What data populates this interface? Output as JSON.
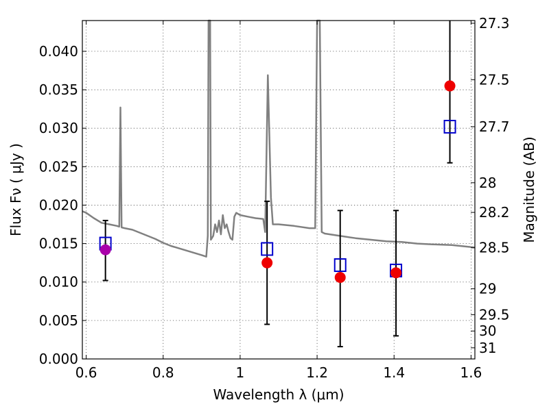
{
  "chart_data": {
    "type": "scatter",
    "xlabel": "Wavelength  λ (μm)",
    "ylabel": "Flux  Fν  ( μJy )",
    "ylabel_right": "Magnitude (AB)",
    "xlim": [
      0.59,
      1.61
    ],
    "ylim": [
      0.0,
      0.044
    ],
    "grid": true,
    "x_ticks": [
      {
        "value": 0.6,
        "label": "0.6"
      },
      {
        "value": 0.8,
        "label": "0.8"
      },
      {
        "value": 1.0,
        "label": "1"
      },
      {
        "value": 1.2,
        "label": "1.2"
      },
      {
        "value": 1.4,
        "label": "1.4"
      },
      {
        "value": 1.6,
        "label": "1.6"
      }
    ],
    "y_ticks": [
      {
        "value": 0.0,
        "label": "0.000"
      },
      {
        "value": 0.005,
        "label": "0.005"
      },
      {
        "value": 0.01,
        "label": "0.010"
      },
      {
        "value": 0.015,
        "label": "0.015"
      },
      {
        "value": 0.02,
        "label": "0.020"
      },
      {
        "value": 0.025,
        "label": "0.025"
      },
      {
        "value": 0.03,
        "label": "0.030"
      },
      {
        "value": 0.035,
        "label": "0.035"
      },
      {
        "value": 0.04,
        "label": "0.040"
      }
    ],
    "mag_ticks": [
      {
        "mag": 27.3,
        "label": "27.3"
      },
      {
        "mag": 27.5,
        "label": "27.5"
      },
      {
        "mag": 27.7,
        "label": "27.7"
      },
      {
        "mag": 28,
        "label": "28"
      },
      {
        "mag": 28.2,
        "label": "28.2"
      },
      {
        "mag": 28.5,
        "label": "28.5"
      },
      {
        "mag": 29,
        "label": "29"
      },
      {
        "mag": 29.5,
        "label": "29.5"
      },
      {
        "mag": 30,
        "label": "30"
      },
      {
        "mag": 31,
        "label": "31"
      }
    ],
    "series": [
      {
        "kind": "spectrum",
        "color": "#808080",
        "points": [
          [
            0.59,
            0.0192
          ],
          [
            0.6,
            0.019
          ],
          [
            0.62,
            0.0183
          ],
          [
            0.64,
            0.0177
          ],
          [
            0.66,
            0.0175
          ],
          [
            0.68,
            0.0173
          ],
          [
            0.686,
            0.0172
          ],
          [
            0.689,
            0.0327
          ],
          [
            0.692,
            0.0171
          ],
          [
            0.7,
            0.017
          ],
          [
            0.72,
            0.0168
          ],
          [
            0.74,
            0.0164
          ],
          [
            0.76,
            0.016
          ],
          [
            0.78,
            0.0156
          ],
          [
            0.8,
            0.0151
          ],
          [
            0.82,
            0.0147
          ],
          [
            0.84,
            0.0144
          ],
          [
            0.86,
            0.0141
          ],
          [
            0.88,
            0.0138
          ],
          [
            0.9,
            0.0135
          ],
          [
            0.912,
            0.0133
          ],
          [
            0.916,
            0.016
          ],
          [
            0.918,
            0.044
          ],
          [
            0.922,
            0.044
          ],
          [
            0.924,
            0.0155
          ],
          [
            0.93,
            0.016
          ],
          [
            0.935,
            0.0175
          ],
          [
            0.94,
            0.0165
          ],
          [
            0.945,
            0.018
          ],
          [
            0.95,
            0.0162
          ],
          [
            0.955,
            0.0187
          ],
          [
            0.96,
            0.017
          ],
          [
            0.965,
            0.0175
          ],
          [
            0.97,
            0.0165
          ],
          [
            0.975,
            0.0157
          ],
          [
            0.98,
            0.0155
          ],
          [
            0.985,
            0.0185
          ],
          [
            0.99,
            0.019
          ],
          [
            1.0,
            0.0187
          ],
          [
            1.02,
            0.0185
          ],
          [
            1.04,
            0.0183
          ],
          [
            1.06,
            0.0182
          ],
          [
            1.065,
            0.0165
          ],
          [
            1.072,
            0.0369
          ],
          [
            1.08,
            0.021
          ],
          [
            1.085,
            0.0175
          ],
          [
            1.1,
            0.0175
          ],
          [
            1.14,
            0.0173
          ],
          [
            1.18,
            0.017
          ],
          [
            1.195,
            0.017
          ],
          [
            1.2,
            0.044
          ],
          [
            1.207,
            0.044
          ],
          [
            1.212,
            0.0165
          ],
          [
            1.22,
            0.0163
          ],
          [
            1.26,
            0.016
          ],
          [
            1.3,
            0.0157
          ],
          [
            1.34,
            0.0155
          ],
          [
            1.38,
            0.0153
          ],
          [
            1.42,
            0.0152
          ],
          [
            1.46,
            0.015
          ],
          [
            1.5,
            0.0149
          ],
          [
            1.55,
            0.0148
          ],
          [
            1.61,
            0.0145
          ]
        ]
      },
      {
        "kind": "model-squares",
        "color": "#0000cc",
        "points": [
          [
            0.65,
            0.015
          ],
          [
            1.07,
            0.0143
          ],
          [
            1.26,
            0.0122
          ],
          [
            1.405,
            0.0115
          ],
          [
            1.545,
            0.0302
          ]
        ]
      },
      {
        "kind": "observed-points",
        "points": [
          {
            "x": 0.65,
            "y": 0.0142,
            "err_low": 0.0102,
            "err_high": 0.018,
            "color": "#aa00aa"
          },
          {
            "x": 1.07,
            "y": 0.0125,
            "err_low": 0.0045,
            "err_high": 0.0205,
            "color": "#ee0000"
          },
          {
            "x": 1.26,
            "y": 0.0106,
            "err_low": 0.0016,
            "err_high": 0.0193,
            "color": "#ee0000"
          },
          {
            "x": 1.405,
            "y": 0.0112,
            "err_low": 0.003,
            "err_high": 0.0193,
            "color": "#ee0000"
          },
          {
            "x": 1.545,
            "y": 0.0355,
            "err_low": 0.0255,
            "err_high": 0.044,
            "color": "#ee0000"
          }
        ]
      }
    ]
  }
}
